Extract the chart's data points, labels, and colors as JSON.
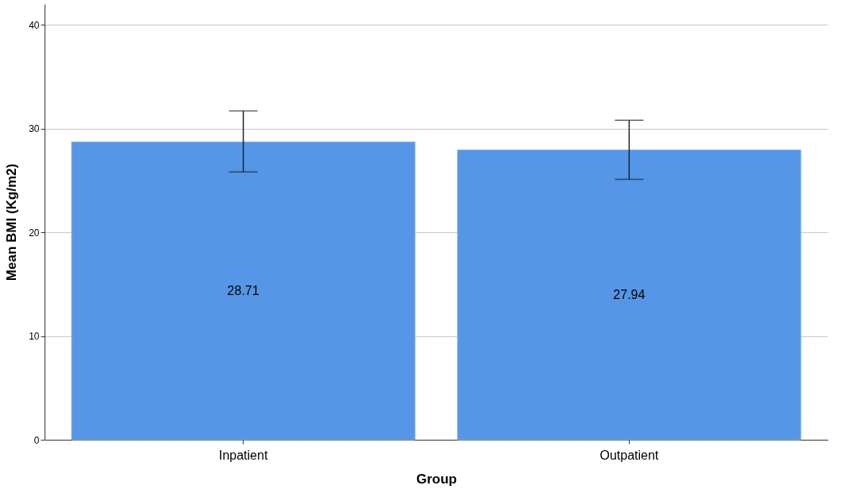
{
  "chart_data": {
    "type": "bar",
    "xlabel": "Group",
    "ylabel": "Mean BMI (Kg/m2)",
    "categories": [
      "Inpatient",
      "Outpatient"
    ],
    "values": [
      28.71,
      27.94
    ],
    "errors": [
      [
        25.8,
        31.7
      ],
      [
        25.1,
        30.8
      ]
    ],
    "color": "#5596e6",
    "ylim": [
      0,
      42
    ],
    "yticks": [
      0,
      10,
      20,
      30,
      40
    ],
    "grid": "y",
    "data_labels": true
  }
}
